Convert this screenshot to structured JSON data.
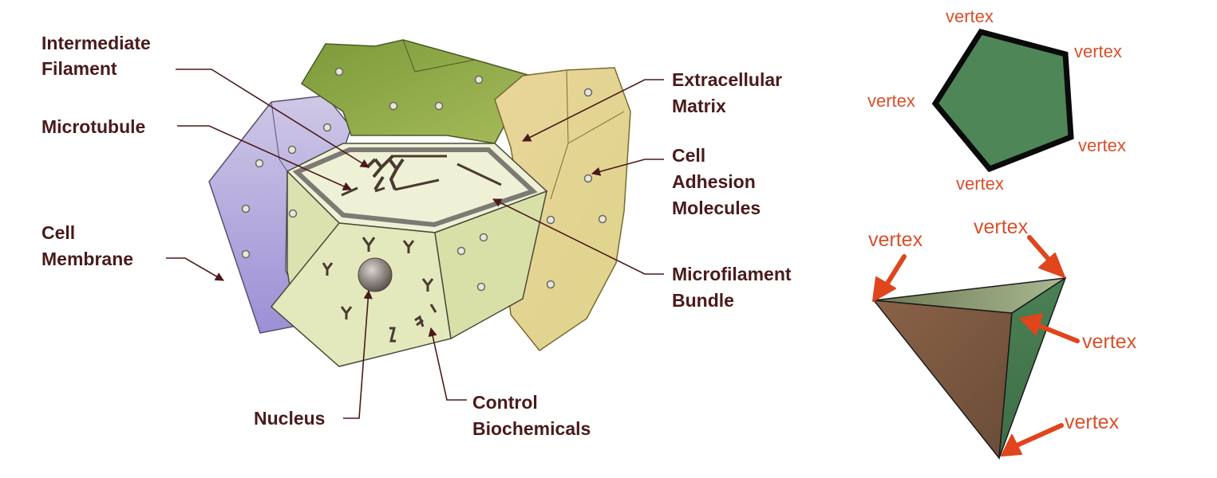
{
  "cell_diagram": {
    "labels": {
      "intermediate_filament": [
        "Intermediate",
        "Filament"
      ],
      "microtubule": [
        "Microtubule"
      ],
      "cell_membrane": [
        "Cell",
        "Membrane"
      ],
      "extracellular_matrix": [
        "Extracellular",
        "Matrix"
      ],
      "cell_adhesion_molecules": [
        "Cell",
        "Adhesion",
        "Molecules"
      ],
      "microfilament_bundle": [
        "Microfilament",
        "Bundle"
      ],
      "nucleus": [
        "Nucleus"
      ],
      "control_biochemicals": [
        "Control",
        "Biochemicals"
      ]
    },
    "colors": {
      "label_text": "#4a1a1a",
      "leader_line": "#4a1a1a",
      "central_cell": "#e6ecc4",
      "green_cell": "#8da84a",
      "purple_cell": "#b9b2d9",
      "tan_cell": "#e2d48e"
    }
  },
  "pentagon": {
    "vertex_labels": [
      "vertex",
      "vertex",
      "vertex",
      "vertex",
      "vertex"
    ],
    "fill": "#4f8657",
    "stroke": "#0a0a0a"
  },
  "tetrahedron": {
    "vertex_labels": [
      "vertex",
      "vertex",
      "vertex",
      "vertex"
    ],
    "colors": {
      "front_face": "#7a5840",
      "side_face": "#4f8657",
      "arrow": "#e0451c"
    }
  }
}
